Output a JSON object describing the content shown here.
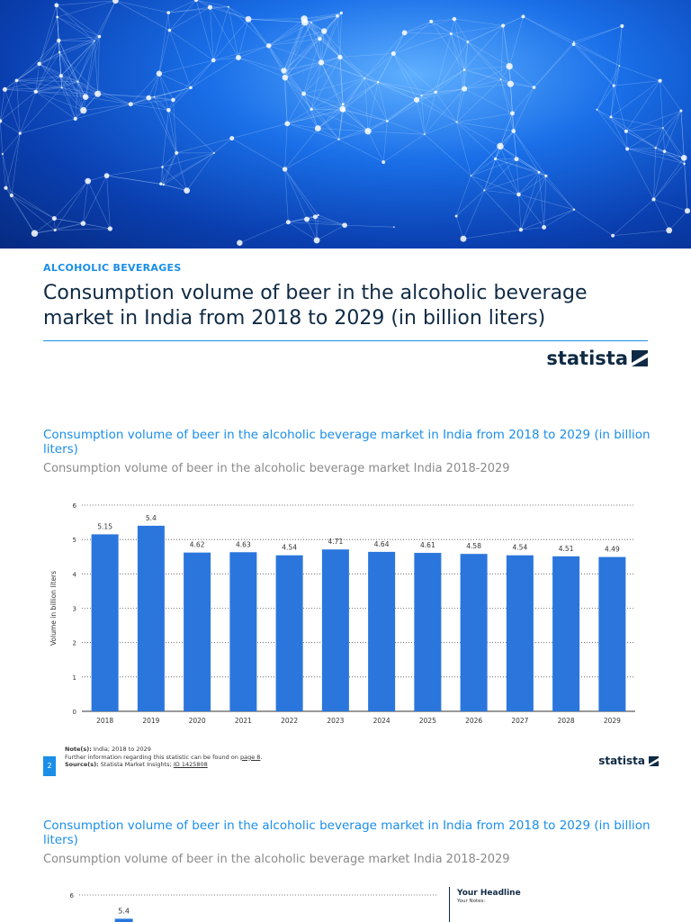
{
  "header": {
    "category": "ALCOHOLIC BEVERAGES",
    "title": "Consumption volume of beer in the alcoholic beverage market in India from 2018 to 2029 (in billion liters)",
    "logo": "statista"
  },
  "chart_section": {
    "title": "Consumption volume of beer in the alcoholic beverage market in India from 2018 to 2029 (in billion liters)",
    "subtitle": "Consumption volume of beer in the alcoholic beverage market India 2018-2029"
  },
  "footer": {
    "notes_label": "Note(s):",
    "notes": "India; 2018 to 2029",
    "further": "Further information regarding this statistic can be found on",
    "further_link": "page 8",
    "source_label": "Source(s):",
    "source": "Statista Market Insights;",
    "source_link": "ID 1425808",
    "page": "2",
    "logo": "statista"
  },
  "second_section": {
    "title": "Consumption volume of beer in the alcoholic beverage market in India from 2018 to 2029 (in billion liters)",
    "subtitle": "Consumption volume of beer in the alcoholic beverage market India 2018-2029",
    "headline": "Your Headline",
    "notes": "Your Notes:"
  },
  "chart_data": {
    "type": "bar",
    "categories": [
      "2018",
      "2019",
      "2020",
      "2021",
      "2022",
      "2023",
      "2024",
      "2025",
      "2026",
      "2027",
      "2028",
      "2029"
    ],
    "values": [
      5.15,
      5.4,
      4.62,
      4.63,
      4.54,
      4.71,
      4.64,
      4.61,
      4.58,
      4.54,
      4.51,
      4.49
    ],
    "ylabel": "Volume in billion liters",
    "ylim": [
      0,
      6
    ],
    "yticks": [
      0,
      1,
      2,
      3,
      4,
      5,
      6
    ],
    "grid": true,
    "bar_color": "#2a76dd"
  }
}
